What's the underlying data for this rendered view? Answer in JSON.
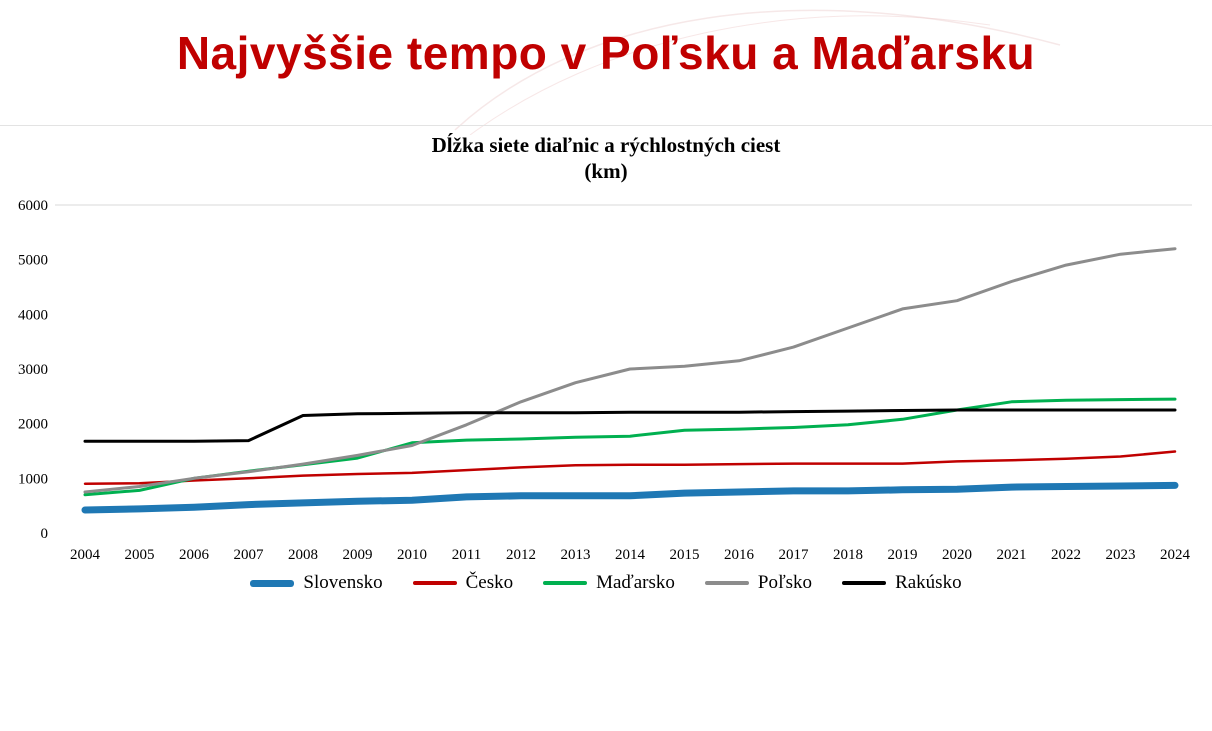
{
  "slide": {
    "title": "Najvyššie tempo v Poľsku a Maďarsku",
    "title_color": "#C00000"
  },
  "chart_data": {
    "type": "line",
    "title": "Dĺžka siete diaľnic a rýchlostných ciest",
    "title_line2": "(km)",
    "x": [
      "2004",
      "2005",
      "2006",
      "2007",
      "2008",
      "2009",
      "2010",
      "2011",
      "2012",
      "2013",
      "2014",
      "2015",
      "2016",
      "2017",
      "2018",
      "2019",
      "2020",
      "2021",
      "2022",
      "2023",
      "2024"
    ],
    "ylim": [
      0,
      6000
    ],
    "ytick_step": 1000,
    "grid": "top-line-only",
    "legend_position": "bottom",
    "series": [
      {
        "name": "Slovensko",
        "color": "#1F78B4",
        "width": 7,
        "values": [
          420,
          440,
          470,
          520,
          550,
          580,
          600,
          660,
          680,
          680,
          680,
          730,
          750,
          770,
          770,
          790,
          800,
          840,
          850,
          860,
          870
        ]
      },
      {
        "name": "Česko",
        "color": "#C00000",
        "width": 2.5,
        "values": [
          900,
          910,
          960,
          1000,
          1050,
          1080,
          1100,
          1150,
          1200,
          1240,
          1250,
          1250,
          1260,
          1270,
          1270,
          1270,
          1310,
          1330,
          1360,
          1400,
          1490
        ]
      },
      {
        "name": "Maďarsko",
        "color": "#00B050",
        "width": 3,
        "values": [
          700,
          780,
          1000,
          1130,
          1250,
          1370,
          1650,
          1700,
          1720,
          1750,
          1770,
          1880,
          1900,
          1930,
          1980,
          2080,
          2250,
          2400,
          2430,
          2440,
          2450
        ]
      },
      {
        "name": "Poľsko",
        "color": "#8C8C8C",
        "width": 3,
        "values": [
          750,
          850,
          1000,
          1120,
          1260,
          1420,
          1600,
          1980,
          2400,
          2750,
          3000,
          3050,
          3150,
          3400,
          3750,
          4100,
          4250,
          4600,
          4900,
          5100,
          5200
        ]
      },
      {
        "name": "Rakúsko",
        "color": "#000000",
        "width": 3,
        "values": [
          1680,
          1680,
          1680,
          1690,
          2150,
          2180,
          2190,
          2200,
          2200,
          2200,
          2210,
          2210,
          2210,
          2220,
          2230,
          2240,
          2250,
          2250,
          2250,
          2250,
          2250
        ]
      }
    ]
  }
}
